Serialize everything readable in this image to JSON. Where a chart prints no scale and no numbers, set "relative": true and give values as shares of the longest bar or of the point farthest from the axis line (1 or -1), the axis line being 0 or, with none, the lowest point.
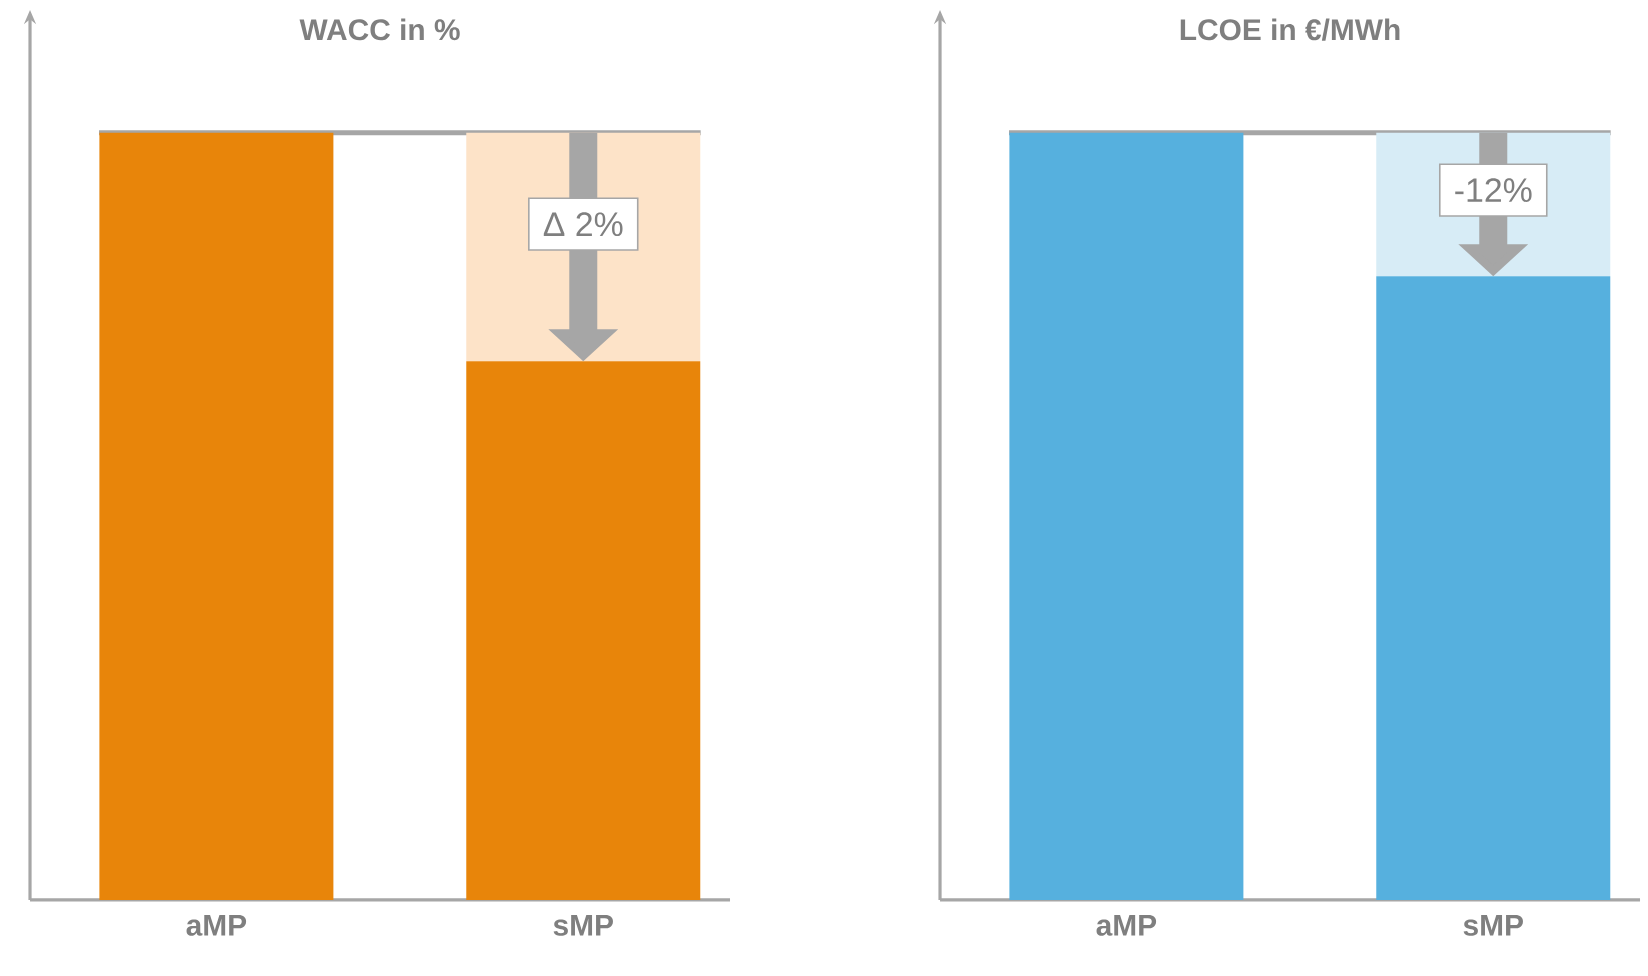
{
  "chart_data": [
    {
      "type": "bar",
      "title": "WACC in %",
      "categories": [
        "aMP",
        "sMP"
      ],
      "stacked": true,
      "relative": true,
      "series": [
        {
          "color": "#e8850a",
          "values": [
            1,
            0.702
          ]
        },
        {
          "color": "#fde3c8",
          "values": [
            null,
            0.298
          ]
        }
      ],
      "annotations": [
        "Δ 2%"
      ],
      "ref_lines": [
        {
          "axis": "y",
          "value": 1,
          "color": "#a6a6a6"
        }
      ]
    },
    {
      "type": "bar",
      "title": "LCOE in €/MWh",
      "categories": [
        "aMP",
        "sMP"
      ],
      "stacked": true,
      "relative": true,
      "series": [
        {
          "color": "#56b0de",
          "values": [
            1,
            0.813
          ]
        },
        {
          "color": "#d7ecf6",
          "values": [
            null,
            0.187
          ]
        }
      ],
      "annotations": [
        "-12%"
      ],
      "ref_lines": [
        {
          "axis": "y",
          "value": 1,
          "color": "#a6a6a6"
        }
      ]
    }
  ]
}
